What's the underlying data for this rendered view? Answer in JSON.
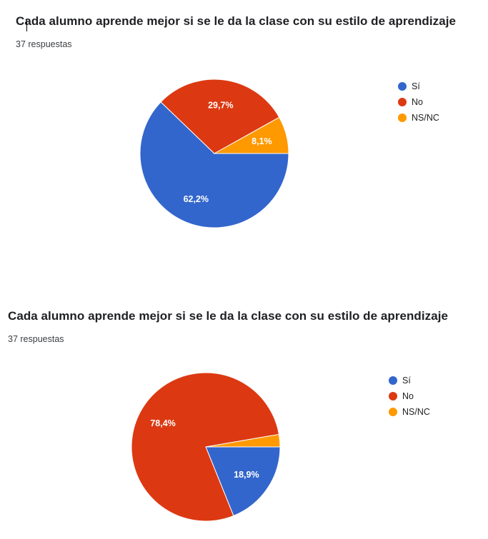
{
  "colors": {
    "si": "#3366cc",
    "no": "#dc3912",
    "nsnc": "#ff9900"
  },
  "chart_data": [
    {
      "type": "pie",
      "title": "Cada alumno aprende mejor si se le da la clase con su estilo de aprendizaje",
      "responses": "37 respuestas",
      "legend_position": "right",
      "slices": [
        {
          "label": "Sí",
          "value": 62.2,
          "display": "62,2%",
          "color": "#3366cc"
        },
        {
          "label": "No",
          "value": 29.7,
          "display": "29,7%",
          "color": "#dc3912"
        },
        {
          "label": "NS/NC",
          "value": 8.1,
          "display": "8,1%",
          "color": "#ff9900"
        }
      ]
    },
    {
      "type": "pie",
      "title": "Cada alumno aprende mejor si se le da la clase con su estilo de aprendizaje",
      "responses": "37 respuestas",
      "legend_position": "right",
      "slices": [
        {
          "label": "Sí",
          "value": 18.9,
          "display": "18,9%",
          "color": "#3366cc"
        },
        {
          "label": "No",
          "value": 78.4,
          "display": "78,4%",
          "color": "#dc3912"
        },
        {
          "label": "NS/NC",
          "value": 2.7,
          "display": "",
          "color": "#ff9900"
        }
      ]
    }
  ]
}
